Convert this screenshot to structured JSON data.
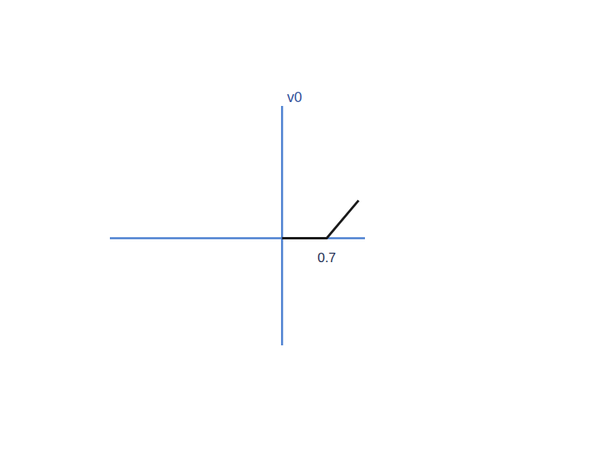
{
  "chart_data": {
    "type": "line",
    "ylabel": "v0",
    "x": [
      0,
      0.7,
      1.2
    ],
    "values": [
      0,
      0,
      0.6
    ],
    "xlim": [
      -2.7,
      1.3
    ],
    "ylim": [
      -1.7,
      2.1
    ],
    "xticks": [
      0.7
    ],
    "yticks": [],
    "tick_labels": "x",
    "color": "#1a1a1a",
    "grid": false
  }
}
